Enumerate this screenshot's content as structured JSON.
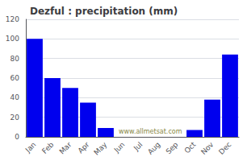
{
  "chart_data": {
    "type": "bar",
    "title": "Dezful : precipitation (mm)",
    "categories": [
      "Jan",
      "Feb",
      "Mar",
      "Apr",
      "May",
      "Jun",
      "Jul",
      "Aug",
      "Sep",
      "Oct",
      "Nov",
      "Dec"
    ],
    "values": [
      100,
      60,
      50,
      35,
      9,
      0,
      0,
      0,
      0,
      7,
      38,
      84
    ],
    "color": "#0000ee",
    "ylim": [
      0,
      120
    ],
    "yticks": [
      0,
      20,
      40,
      60,
      80,
      100,
      120
    ],
    "grid": true,
    "annotations": [
      "www.allmetsat.com"
    ]
  }
}
